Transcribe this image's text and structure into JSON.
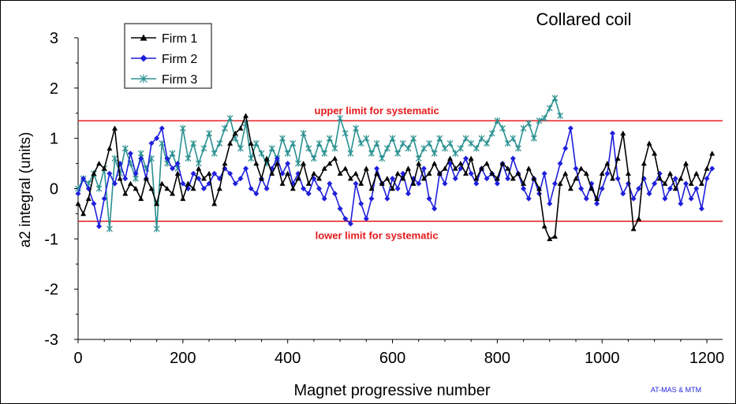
{
  "chart_data": {
    "type": "line",
    "title": "Collared coil",
    "xlabel": "Magnet progressive number",
    "ylabel": "a2 integral (units)",
    "xlim": [
      0,
      1230
    ],
    "ylim": [
      -3,
      3
    ],
    "xticks": [
      0,
      200,
      400,
      600,
      800,
      1000,
      1200
    ],
    "yticks": [
      -3,
      -2,
      -1,
      0,
      1,
      2,
      3
    ],
    "grid": false,
    "legend_position": "top-left",
    "credit": "AT-MAS & MTM",
    "colors": {
      "firm1": "#000000",
      "firm2": "#1f1fdc",
      "firm3": "#2a9090",
      "limits": "#e41a1c"
    },
    "limits": [
      {
        "label": "upper limit for systematic",
        "value": 1.35,
        "label_x": 570,
        "label_y": 1.48
      },
      {
        "label": "lower limit for systematic",
        "value": -0.65,
        "label_x": 570,
        "label_y": -1.0
      }
    ],
    "series": [
      {
        "name": "Firm 1",
        "marker": "triangle",
        "color": "#000000",
        "x": [
          0,
          10,
          20,
          30,
          40,
          50,
          60,
          70,
          80,
          90,
          100,
          110,
          120,
          130,
          140,
          150,
          160,
          170,
          180,
          190,
          200,
          210,
          220,
          230,
          240,
          250,
          260,
          270,
          280,
          290,
          300,
          310,
          320,
          330,
          340,
          350,
          360,
          370,
          380,
          390,
          400,
          410,
          420,
          430,
          440,
          450,
          460,
          470,
          480,
          490,
          500,
          510,
          520,
          530,
          540,
          550,
          560,
          570,
          580,
          590,
          600,
          610,
          620,
          630,
          640,
          650,
          660,
          670,
          680,
          690,
          700,
          710,
          720,
          730,
          740,
          750,
          760,
          770,
          780,
          790,
          800,
          810,
          820,
          830,
          840,
          850,
          860,
          870,
          880,
          890,
          900,
          910,
          920,
          930,
          940,
          950,
          960,
          970,
          980,
          990,
          1000,
          1010,
          1020,
          1030,
          1040,
          1050,
          1060,
          1070,
          1080,
          1090,
          1100,
          1110,
          1120,
          1130,
          1140,
          1150,
          1160,
          1170,
          1180,
          1190,
          1200,
          1210
        ],
        "y": [
          -0.3,
          -0.5,
          -0.2,
          0.3,
          0.5,
          0.4,
          0.8,
          1.2,
          0.2,
          -0.1,
          0.1,
          0.0,
          -0.2,
          0.2,
          0.0,
          -0.3,
          0.1,
          0.0,
          -0.1,
          0.3,
          -0.2,
          0.1,
          0.0,
          0.4,
          0.2,
          0.3,
          -0.3,
          0.0,
          0.5,
          0.9,
          1.1,
          1.2,
          1.45,
          0.9,
          0.5,
          0.2,
          0.6,
          0.3,
          0.5,
          0.1,
          0.3,
          0.0,
          0.2,
          0.5,
          0.1,
          0.3,
          0.2,
          0.4,
          0.5,
          0.6,
          0.3,
          0.4,
          0.2,
          0.3,
          0.1,
          0.4,
          0.0,
          0.3,
          0.1,
          0.2,
          0.0,
          0.3,
          0.2,
          0.4,
          0.1,
          0.5,
          0.2,
          0.3,
          0.5,
          0.3,
          0.4,
          0.6,
          0.4,
          0.5,
          0.3,
          0.6,
          0.2,
          0.4,
          0.5,
          0.3,
          0.2,
          0.5,
          0.4,
          0.2,
          0.3,
          0.1,
          0.4,
          0.2,
          0.0,
          -0.75,
          -1.0,
          -0.95,
          0.1,
          0.3,
          0.0,
          0.2,
          0.4,
          0.3,
          0.0,
          -0.2,
          0.3,
          0.5,
          0.2,
          0.6,
          1.1,
          0.3,
          -0.8,
          -0.6,
          0.5,
          0.9,
          0.7,
          0.2,
          0.1,
          0.3,
          0.0,
          0.2,
          0.5,
          0.1,
          0.3,
          0.1,
          0.4,
          0.7
        ]
      },
      {
        "name": "Firm 2",
        "marker": "diamond",
        "color": "#1f1fdc",
        "x": [
          0,
          10,
          20,
          30,
          40,
          50,
          60,
          70,
          80,
          90,
          100,
          110,
          120,
          130,
          140,
          150,
          160,
          170,
          180,
          190,
          200,
          210,
          220,
          230,
          240,
          250,
          260,
          270,
          280,
          290,
          300,
          310,
          320,
          330,
          340,
          350,
          360,
          370,
          380,
          390,
          400,
          410,
          420,
          430,
          440,
          450,
          460,
          470,
          480,
          490,
          500,
          510,
          520,
          530,
          540,
          550,
          560,
          570,
          580,
          590,
          600,
          610,
          620,
          630,
          640,
          650,
          660,
          670,
          680,
          690,
          700,
          710,
          720,
          730,
          740,
          750,
          760,
          770,
          780,
          790,
          800,
          810,
          820,
          830,
          840,
          850,
          860,
          870,
          880,
          890,
          900,
          910,
          920,
          930,
          940,
          950,
          960,
          970,
          980,
          990,
          1000,
          1010,
          1020,
          1030,
          1040,
          1050,
          1060,
          1070,
          1080,
          1090,
          1100,
          1110,
          1120,
          1130,
          1140,
          1150,
          1160,
          1170,
          1180,
          1190,
          1200,
          1210
        ],
        "y": [
          -0.1,
          0.2,
          0.0,
          -0.3,
          -0.75,
          -0.2,
          0.3,
          0.1,
          0.5,
          0.2,
          0.7,
          0.3,
          0.6,
          0.2,
          0.9,
          1.0,
          1.2,
          0.6,
          0.4,
          0.5,
          0.1,
          0.0,
          0.3,
          0.2,
          0.0,
          0.1,
          0.3,
          0.2,
          0.4,
          0.3,
          0.1,
          0.2,
          0.4,
          0.0,
          -0.1,
          0.2,
          0.0,
          0.4,
          0.6,
          0.3,
          0.5,
          0.1,
          0.3,
          0.0,
          -0.1,
          0.2,
          0.0,
          -0.2,
          0.1,
          -0.1,
          -0.4,
          -0.6,
          -0.7,
          0.1,
          -0.3,
          -0.6,
          -0.2,
          0.4,
          0.1,
          -0.2,
          0.2,
          0.0,
          0.3,
          -0.1,
          0.2,
          0.1,
          0.4,
          -0.2,
          -0.4,
          0.3,
          0.1,
          0.5,
          0.2,
          0.4,
          0.6,
          0.3,
          0.1,
          0.4,
          0.2,
          0.3,
          0.1,
          0.5,
          0.2,
          0.6,
          0.3,
          0.0,
          -0.2,
          0.2,
          -0.1,
          0.3,
          -0.3,
          0.1,
          0.5,
          0.8,
          1.2,
          0.4,
          0.0,
          -0.2,
          0.1,
          -0.3,
          0.0,
          0.3,
          1.1,
          0.2,
          -0.1,
          0.1,
          -0.2,
          0.0,
          0.2,
          -0.1,
          0.1,
          0.3,
          -0.2,
          0.0,
          0.2,
          -0.3,
          0.1,
          -0.2,
          0.0,
          -0.4,
          0.2,
          0.4
        ]
      },
      {
        "name": "Firm 3",
        "marker": "star",
        "color": "#2a9090",
        "x": [
          0,
          10,
          20,
          30,
          40,
          50,
          60,
          70,
          80,
          90,
          100,
          110,
          120,
          130,
          140,
          150,
          160,
          170,
          180,
          190,
          200,
          210,
          220,
          230,
          240,
          250,
          260,
          270,
          280,
          290,
          300,
          310,
          320,
          330,
          340,
          350,
          360,
          370,
          380,
          390,
          400,
          410,
          420,
          430,
          440,
          450,
          460,
          470,
          480,
          490,
          500,
          510,
          520,
          530,
          540,
          550,
          560,
          570,
          580,
          590,
          600,
          610,
          620,
          630,
          640,
          650,
          660,
          670,
          680,
          690,
          700,
          710,
          720,
          730,
          740,
          750,
          760,
          770,
          780,
          790,
          800,
          810,
          820,
          830,
          840,
          850,
          860,
          870,
          880,
          890,
          900,
          910,
          920
        ],
        "y": [
          0.0,
          0.2,
          0.1,
          0.3,
          0.0,
          0.4,
          -0.8,
          0.6,
          0.3,
          0.8,
          0.5,
          0.2,
          0.7,
          0.4,
          0.6,
          -0.8,
          0.9,
          0.5,
          0.7,
          0.4,
          1.2,
          0.6,
          0.9,
          0.5,
          0.8,
          1.1,
          0.7,
          0.9,
          1.2,
          1.4,
          1.0,
          0.8,
          1.3,
          0.6,
          0.9,
          0.7,
          0.5,
          0.8,
          0.6,
          1.0,
          0.7,
          0.9,
          0.5,
          1.1,
          0.8,
          0.6,
          0.9,
          0.7,
          1.0,
          0.8,
          1.4,
          1.1,
          0.7,
          1.2,
          0.9,
          1.0,
          0.7,
          0.9,
          0.6,
          0.8,
          1.0,
          0.7,
          0.9,
          0.8,
          1.0,
          0.6,
          0.8,
          0.9,
          0.7,
          1.0,
          0.8,
          0.9,
          0.7,
          0.8,
          1.0,
          0.9,
          0.8,
          1.0,
          0.9,
          1.1,
          1.35,
          1.2,
          0.9,
          1.0,
          0.8,
          1.2,
          1.3,
          1.0,
          1.35,
          1.4,
          1.6,
          1.8,
          1.45
        ]
      }
    ]
  }
}
